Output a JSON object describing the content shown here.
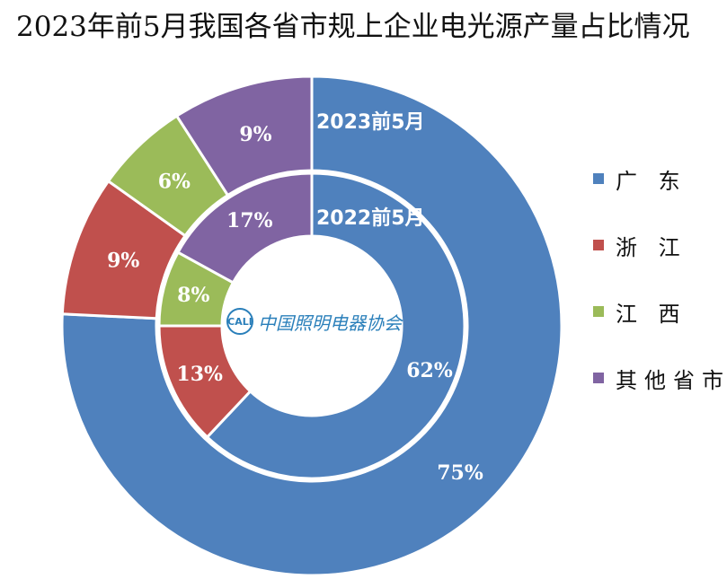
{
  "title": "2023年前5月我国各省市规上企业电光源产量占比情况",
  "logo": {
    "mark": "CALI",
    "text": "中国照明电器协会"
  },
  "chart_data": {
    "type": "pie",
    "subtype": "nested-donut",
    "categories": [
      "广 东",
      "浙 江",
      "江 西",
      "其他省市"
    ],
    "colors": [
      "#4f81bd",
      "#c0504d",
      "#9bbb59",
      "#8064a2"
    ],
    "series": [
      {
        "name": "2023前5月",
        "ring": "outer",
        "values": [
          75,
          9,
          6,
          9
        ],
        "labels": [
          "75%",
          "9%",
          "6%",
          "9%"
        ]
      },
      {
        "name": "2022前5月",
        "ring": "inner",
        "values": [
          62,
          13,
          8,
          17
        ],
        "labels": [
          "62%",
          "13%",
          "8%",
          "17%"
        ]
      }
    ],
    "legend": "right"
  }
}
